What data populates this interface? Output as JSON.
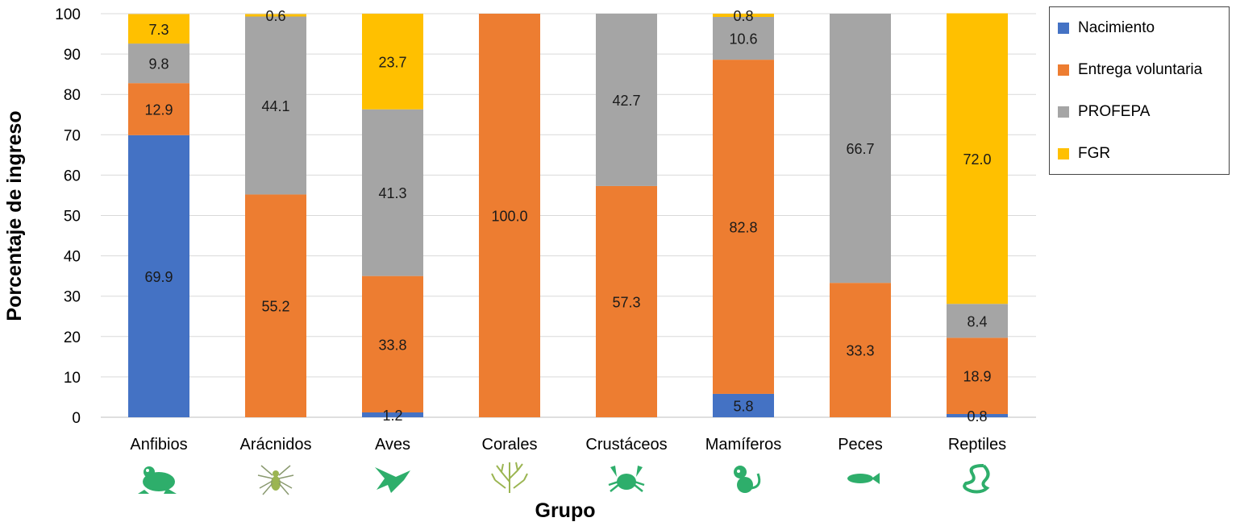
{
  "chart_data": {
    "type": "bar",
    "stacked": true,
    "xlabel": "Grupo",
    "ylabel": "Porcentaje de ingreso",
    "ylim": [
      0,
      100
    ],
    "yticks": [
      0,
      10,
      20,
      30,
      40,
      50,
      60,
      70,
      80,
      90,
      100
    ],
    "grid": true,
    "legend_position": "top-right",
    "categories": [
      "Anfibios",
      "Arácnidos",
      "Aves",
      "Corales",
      "Crustáceos",
      "Mamíferos",
      "Peces",
      "Reptiles"
    ],
    "category_icons": [
      "frog-icon",
      "spider-icon",
      "hummingbird-icon",
      "coral-icon",
      "crab-icon",
      "monkey-icon",
      "fish-icon",
      "snake-icon"
    ],
    "series": [
      {
        "name": "Nacimiento",
        "color": "#4472c4",
        "values": [
          69.9,
          0,
          1.2,
          0,
          0,
          5.8,
          0,
          0.8
        ],
        "labels": [
          "69.9",
          "",
          "1.2",
          "",
          "",
          "5.8",
          "",
          "0.8"
        ]
      },
      {
        "name": "Entrega voluntaria",
        "color": "#ed7d31",
        "values": [
          12.9,
          55.2,
          33.8,
          100.0,
          57.3,
          82.8,
          33.3,
          18.9
        ],
        "labels": [
          "12.9",
          "55.2",
          "33.8",
          "100.0",
          "57.3",
          "82.8",
          "33.3",
          "18.9"
        ]
      },
      {
        "name": "PROFEPA",
        "color": "#a5a5a5",
        "values": [
          9.8,
          44.1,
          41.3,
          0,
          42.7,
          10.6,
          66.7,
          8.4
        ],
        "labels": [
          "9.8",
          "44.1",
          "41.3",
          "",
          "42.7",
          "10.6",
          "66.7",
          "8.4"
        ]
      },
      {
        "name": "FGR",
        "color": "#ffc000",
        "values": [
          7.3,
          0.6,
          23.7,
          0,
          0,
          0.8,
          0,
          72.0
        ],
        "labels": [
          "7.3",
          "0.6",
          "23.7",
          "",
          "",
          "0.8",
          "",
          "72.0"
        ]
      }
    ],
    "icon_color": "#2eae6b"
  }
}
